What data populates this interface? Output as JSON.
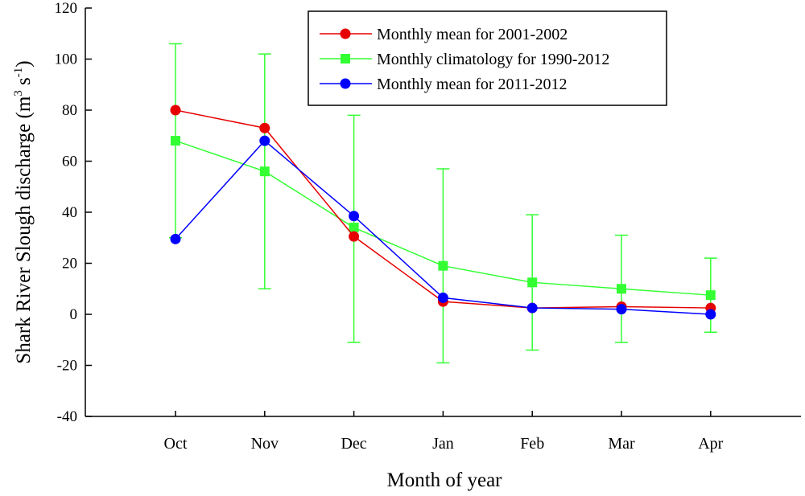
{
  "chart_data": {
    "type": "line",
    "title": "",
    "xlabel": "Month of year",
    "ylabel": {
      "text": "Shark River Slough discharge (m",
      "sup1": "3",
      "mid": " s",
      "sup2": "-1",
      "end": ")"
    },
    "categories": [
      "Oct",
      "Nov",
      "Dec",
      "Jan",
      "Feb",
      "Mar",
      "Apr"
    ],
    "ylim": [
      -40,
      120
    ],
    "yticks": [
      -40,
      -20,
      0,
      20,
      40,
      60,
      80,
      100,
      120
    ],
    "legend_position": "top-right",
    "series": [
      {
        "name": "Monthly mean for 2001-2002",
        "color": "#e60000",
        "marker": "circle",
        "values": [
          80,
          73,
          30.5,
          5,
          2.5,
          3,
          2.5
        ]
      },
      {
        "name": "Monthly climatology for 1990-2012",
        "color": "#33ff33",
        "marker": "square",
        "values": [
          68,
          56,
          34,
          19,
          12.5,
          10,
          7.5
        ],
        "error_low": [
          30,
          10,
          -11,
          -19,
          -14,
          -11,
          -7
        ],
        "error_high": [
          106,
          102,
          78,
          57,
          39,
          31,
          22
        ]
      },
      {
        "name": "Monthly mean for 2011-2012",
        "color": "#0000ff",
        "marker": "circle",
        "values": [
          29.5,
          68,
          38.5,
          6.5,
          2.5,
          2,
          0
        ]
      }
    ]
  }
}
